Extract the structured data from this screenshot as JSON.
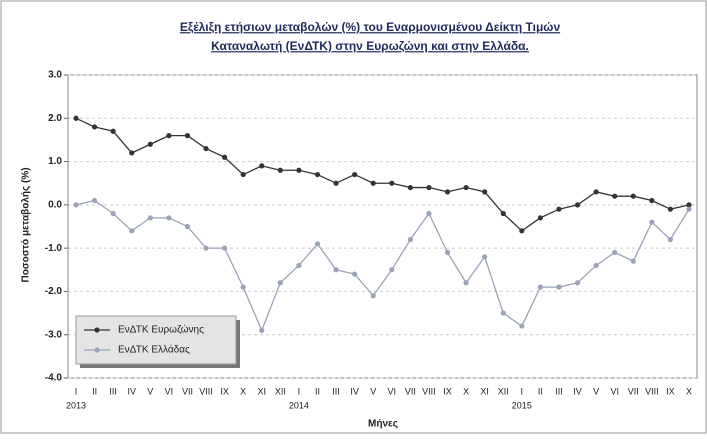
{
  "chart_data": {
    "type": "line",
    "title": [
      "Εξέλιξη ετήσιων μεταβολών (%) του Εναρμονισμένου Δείκτη Τιμών",
      "Καταναλωτή (ΕνΔΤΚ) στην Ευρωζώνη και στην Ελλάδα."
    ],
    "y_label": "Ποσοστό μεταβολής (%)",
    "x_label": "Μήνες",
    "years": [
      "2013",
      "2014",
      "2015"
    ],
    "categories": [
      "I",
      "II",
      "III",
      "IV",
      "V",
      "VI",
      "VII",
      "VIII",
      "IX",
      "X",
      "XI",
      "XII",
      "I",
      "II",
      "III",
      "IV",
      "V",
      "VI",
      "VII",
      "VIII",
      "IX",
      "X",
      "XI",
      "XII",
      "I",
      "II",
      "III",
      "IV",
      "V",
      "VI",
      "VII",
      "VIII",
      "IX",
      "X"
    ],
    "series": [
      {
        "name": "ΕνΔΤΚ Ευρωζώνης",
        "color": "#333333",
        "values": [
          2.0,
          1.8,
          1.7,
          1.2,
          1.4,
          1.6,
          1.6,
          1.3,
          1.1,
          0.7,
          0.9,
          0.8,
          0.8,
          0.7,
          0.5,
          0.7,
          0.5,
          0.5,
          0.4,
          0.4,
          0.3,
          0.4,
          0.3,
          -0.2,
          -0.6,
          -0.3,
          -0.1,
          0.0,
          0.3,
          0.2,
          0.2,
          0.1,
          -0.1,
          0.0
        ]
      },
      {
        "name": "ΕνΔΤΚ Ελλάδας",
        "color": "#9aa3b8",
        "values": [
          0.0,
          0.1,
          -0.2,
          -0.6,
          -0.3,
          -0.3,
          -0.5,
          -1.0,
          -1.0,
          -1.9,
          -2.9,
          -1.8,
          -1.4,
          -0.9,
          -1.5,
          -1.6,
          -2.1,
          -1.5,
          -0.8,
          -0.2,
          -1.1,
          -1.8,
          -1.2,
          -2.5,
          -2.8,
          -1.9,
          -1.9,
          -1.8,
          -1.4,
          -1.1,
          -1.3,
          -0.4,
          -0.8,
          -0.1
        ]
      }
    ],
    "ylim": [
      -4,
      3
    ],
    "yticks": [
      {
        "value": 3,
        "label": "3.0"
      },
      {
        "value": 2,
        "label": "2.0"
      },
      {
        "value": 1,
        "label": "1.0"
      },
      {
        "value": 0,
        "label": "0.0"
      },
      {
        "value": -1,
        "label": "-1.0"
      },
      {
        "value": -2,
        "label": "-2.0"
      },
      {
        "value": -3,
        "label": "-3.0"
      },
      {
        "value": -4,
        "label": "-4.0"
      }
    ],
    "grid": true,
    "legend": "lower left"
  }
}
